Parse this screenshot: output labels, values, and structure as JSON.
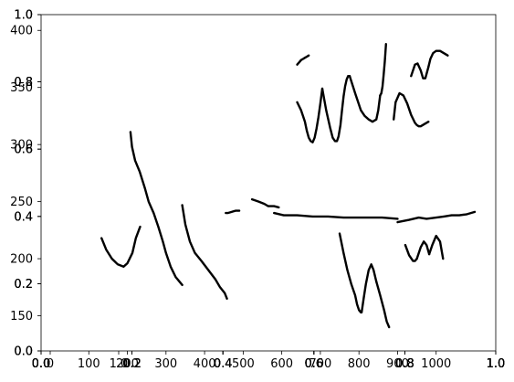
{
  "chart_data": {
    "type": "line",
    "title": "",
    "xlabel": "",
    "ylabel": "",
    "grid": false,
    "legend": "none",
    "colors": {
      "ink": "#000000",
      "axes": "#000000",
      "background": "#ffffff"
    },
    "axes_overlay": [
      {
        "id": "ax0",
        "xlim": [
          0,
          1
        ],
        "ylim": [
          0,
          1
        ],
        "xticks": [
          {
            "v": 0.0,
            "label": "0.0"
          },
          {
            "v": 0.2,
            "label": "0.2"
          },
          {
            "v": 0.4,
            "label": "0.4"
          },
          {
            "v": 0.6,
            "label": "0.6"
          },
          {
            "v": 0.8,
            "label": "0.8"
          },
          {
            "v": 1.0,
            "label": "1.0"
          }
        ],
        "yticks": [
          {
            "v": 0.0,
            "label": "0.0"
          },
          {
            "v": 0.2,
            "label": "0.2"
          },
          {
            "v": 0.4,
            "label": "0.4"
          },
          {
            "v": 0.6,
            "label": "0.6"
          },
          {
            "v": 0.8,
            "label": "0.8"
          },
          {
            "v": 1.0,
            "label": "1.0"
          }
        ]
      },
      {
        "id": "ax1",
        "xlim": [
          0,
          1
        ],
        "ylim": [
          0,
          1
        ],
        "xticks": [
          {
            "v": 0.0,
            "label": "0.0"
          },
          {
            "v": 0.2,
            "label": "0.2"
          },
          {
            "v": 0.4,
            "label": "0.4"
          },
          {
            "v": 0.6,
            "label": "0.6"
          },
          {
            "v": 0.8,
            "label": "0.8"
          },
          {
            "v": 1.0,
            "label": "1.0"
          }
        ],
        "yticks": [
          {
            "v": 0.0,
            "label": "0.0"
          },
          {
            "v": 0.2,
            "label": "0.2"
          },
          {
            "v": 0.4,
            "label": "0.4"
          },
          {
            "v": 0.6,
            "label": "0.6"
          },
          {
            "v": 0.8,
            "label": "0.8"
          },
          {
            "v": 1.0,
            "label": "1.0"
          }
        ]
      },
      {
        "id": "ax2",
        "xlim": [
          0,
          1
        ],
        "ylim": [
          0,
          1
        ],
        "xticks": [
          {
            "v": 0.0,
            "label": "0.0"
          },
          {
            "v": 0.2,
            "label": "0.2"
          },
          {
            "v": 0.4,
            "label": "0.4"
          },
          {
            "v": 0.6,
            "label": "0.6"
          },
          {
            "v": 0.8,
            "label": "0.8"
          },
          {
            "v": 1.0,
            "label": "1.0"
          }
        ],
        "yticks": []
      },
      {
        "id": "ax3",
        "xlim": [
          0,
          1
        ],
        "ylim": [
          0,
          1
        ],
        "xticks": [],
        "yticks": [
          {
            "v": 0.0,
            "label": "0.0"
          },
          {
            "v": 0.2,
            "label": "0.2"
          },
          {
            "v": 0.4,
            "label": "0.4"
          },
          {
            "v": 0.6,
            "label": "0.6"
          },
          {
            "v": 0.8,
            "label": "0.8"
          },
          {
            "v": 1.0,
            "label": "1.0"
          }
        ]
      },
      {
        "id": "ax4",
        "xlim": [
          0,
          1
        ],
        "ylim": [
          0,
          1
        ],
        "xticks": [
          {
            "v": 0.0,
            "label": "0.0"
          },
          {
            "v": 0.2,
            "label": "0.2"
          },
          {
            "v": 0.4,
            "label": "0.4"
          },
          {
            "v": 0.6,
            "label": "0.6"
          },
          {
            "v": 0.8,
            "label": "0.8"
          },
          {
            "v": 1.0,
            "label": "1.0"
          }
        ],
        "yticks": []
      },
      {
        "id": "ax5",
        "xlim": [
          0,
          1
        ],
        "ylim": [
          0,
          1
        ],
        "xticks": [
          {
            "v": 0.0,
            "label": "0.0"
          },
          {
            "v": 0.2,
            "label": "0.2"
          },
          {
            "v": 0.4,
            "label": "0.4"
          },
          {
            "v": 0.6,
            "label": "0.6"
          },
          {
            "v": 0.8,
            "label": "0.8"
          },
          {
            "v": 1.0,
            "label": "1.0"
          }
        ],
        "yticks": []
      },
      {
        "id": "ax6",
        "xlim": [
          0,
          1
        ],
        "ylim": [
          0,
          1
        ],
        "xticks": [
          {
            "v": 0.0,
            "label": "0.0"
          },
          {
            "v": 1.0,
            "label": "1.0"
          }
        ],
        "yticks": []
      }
    ],
    "main_axes": {
      "xlim": [
        0,
        1100
      ],
      "ylim": [
        100,
        405
      ],
      "xticks": [
        {
          "v": 0,
          "label": "0"
        },
        {
          "v": 100,
          "label": "100"
        },
        {
          "v": 200,
          "label": "200"
        },
        {
          "v": 300,
          "label": "300"
        },
        {
          "v": 400,
          "label": "400"
        },
        {
          "v": 500,
          "label": "500"
        },
        {
          "v": 600,
          "label": "600"
        },
        {
          "v": 700,
          "label": "700"
        },
        {
          "v": 800,
          "label": "800"
        },
        {
          "v": 900,
          "label": "900"
        },
        {
          "v": 1000,
          "label": "1000"
        }
      ],
      "yticks": [
        {
          "v": 150,
          "label": "150"
        },
        {
          "v": 200,
          "label": "200"
        },
        {
          "v": 250,
          "label": "250"
        },
        {
          "v": 300,
          "label": "300"
        },
        {
          "v": 350,
          "label": "350"
        },
        {
          "v": 400,
          "label": "400"
        }
      ]
    },
    "series": [
      {
        "x": [
          133,
          145,
          160,
          175,
          190,
          200,
          213,
          222,
          233
        ],
        "y": [
          218,
          208,
          200,
          195,
          193,
          196,
          205,
          218,
          228
        ]
      },
      {
        "x": [
          342,
          350,
          362,
          375,
          392,
          410,
          428,
          440,
          452,
          458
        ],
        "y": [
          247,
          230,
          215,
          205,
          198,
          190,
          182,
          175,
          170,
          165
        ]
      },
      {
        "x": [
          208,
          212,
          220,
          232,
          245,
          255,
          268,
          280,
          292,
          300,
          312,
          325,
          342
        ],
        "y": [
          311,
          298,
          286,
          276,
          262,
          250,
          240,
          228,
          215,
          205,
          193,
          184,
          177
        ]
      },
      {
        "x": [
          455,
          460,
          470,
          480,
          490
        ],
        "y": [
          240,
          240,
          241,
          242,
          242
        ]
      },
      {
        "x": [
          523,
          540,
          555,
          565,
          580,
          592
        ],
        "y": [
          252,
          250,
          248,
          246,
          246,
          245
        ]
      },
      {
        "x": [
          640,
          650,
          660,
          665,
          670,
          675,
          680,
          685,
          690,
          695,
          700,
          705
        ],
        "y": [
          337,
          330,
          320,
          312,
          306,
          303,
          302,
          306,
          314,
          324,
          336,
          349
        ]
      },
      {
        "x": [
          705,
          715,
          725,
          732,
          738,
          743,
          747,
          752,
          756,
          760,
          764,
          768,
          772,
          776
        ],
        "y": [
          349,
          330,
          315,
          306,
          303,
          303,
          307,
          317,
          330,
          342,
          351,
          357,
          360,
          360
        ]
      },
      {
        "x": [
          640,
          645,
          650,
          655,
          660,
          665,
          670
        ],
        "y": [
          370,
          372,
          374,
          375,
          376,
          377,
          378
        ]
      },
      {
        "x": [
          776,
          790,
          805,
          815,
          825,
          835,
          845,
          850,
          855
        ],
        "y": [
          360,
          345,
          330,
          325,
          322,
          320,
          322,
          330,
          343
        ]
      },
      {
        "x": [
          855,
          858,
          861,
          864,
          867,
          870
        ],
        "y": [
          343,
          345,
          351,
          361,
          373,
          388
        ]
      },
      {
        "x": [
          890,
          895,
          905,
          915,
          925,
          935,
          945,
          950,
          955,
          960,
          970,
          980
        ],
        "y": [
          322,
          337,
          345,
          343,
          336,
          326,
          319,
          317,
          316,
          316,
          318,
          320
        ]
      },
      {
        "x": [
          900,
          930,
          955,
          975,
          1000,
          1020,
          1040,
          1060,
          1080,
          1100
        ],
        "y": [
          232,
          234,
          236,
          235,
          236,
          237,
          238,
          238,
          239,
          241
        ]
      },
      {
        "x": [
          580,
          605,
          640,
          680,
          720,
          760,
          800,
          830,
          860,
          900
        ],
        "y": [
          240,
          238,
          238,
          237,
          237,
          236,
          236,
          236,
          236,
          235
        ]
      },
      {
        "x": [
          750,
          760,
          770,
          780,
          790,
          795,
          800,
          805
        ],
        "y": [
          222,
          205,
          190,
          178,
          168,
          160,
          155,
          153
        ]
      },
      {
        "x": [
          807,
          812,
          818,
          825,
          832,
          838,
          845
        ],
        "y": [
          153,
          165,
          178,
          190,
          195,
          190,
          180
        ]
      },
      {
        "x": [
          845,
          855,
          865,
          872,
          878
        ],
        "y": [
          180,
          168,
          155,
          145,
          140
        ]
      },
      {
        "x": [
          920,
          930,
          940,
          945,
          950
        ],
        "y": [
          212,
          203,
          198,
          198,
          200
        ]
      },
      {
        "x": [
          950,
          960,
          968,
          975,
          982
        ],
        "y": [
          200,
          210,
          215,
          212,
          204
        ]
      },
      {
        "x": [
          982,
          990,
          1000,
          1010,
          1018
        ],
        "y": [
          204,
          212,
          220,
          215,
          200
        ]
      },
      {
        "x": [
          935,
          945,
          952,
          960,
          966,
          972,
          980
        ],
        "y": [
          360,
          370,
          371,
          365,
          358,
          358,
          368
        ]
      },
      {
        "x": [
          980,
          985,
          992,
          1000,
          1010,
          1020,
          1030
        ],
        "y": [
          368,
          375,
          380,
          382,
          382,
          380,
          378
        ]
      }
    ]
  }
}
